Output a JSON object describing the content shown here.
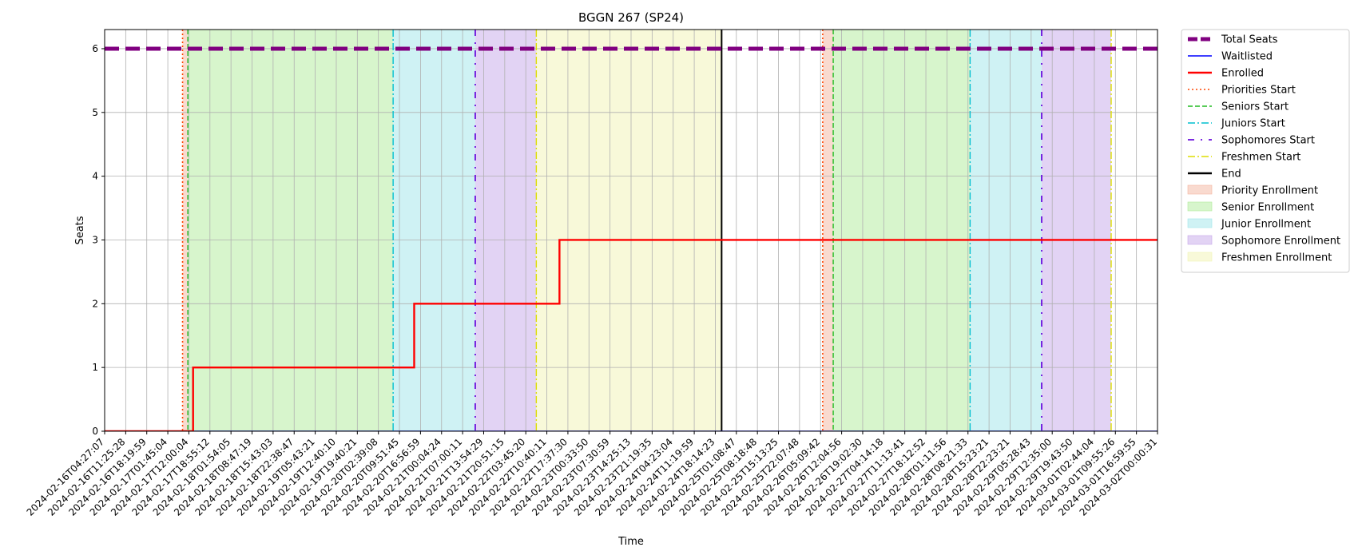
{
  "chart_data": {
    "type": "line",
    "title": "BGGN 267 (SP24)",
    "xlabel": "Time",
    "ylabel": "Seats",
    "ylim": [
      0,
      6.3
    ],
    "yticks": [
      0,
      1,
      2,
      3,
      4,
      5,
      6
    ],
    "grid": true,
    "legend_position": "outside-right-top",
    "x_ticks": [
      "2024-02-16T04:27:07",
      "2024-02-16T11:25:28",
      "2024-02-16T18:19:59",
      "2024-02-17T01:45:04",
      "2024-02-17T12:00:04",
      "2024-02-17T18:55:12",
      "2024-02-18T01:54:05",
      "2024-02-18T08:47:19",
      "2024-02-18T15:43:03",
      "2024-02-18T22:38:47",
      "2024-02-19T05:43:21",
      "2024-02-19T12:40:10",
      "2024-02-19T19:40:21",
      "2024-02-20T02:39:08",
      "2024-02-20T09:51:45",
      "2024-02-20T16:56:59",
      "2024-02-21T00:04:24",
      "2024-02-21T07:00:11",
      "2024-02-21T13:54:29",
      "2024-02-21T20:51:15",
      "2024-02-22T03:45:20",
      "2024-02-22T10:40:11",
      "2024-02-22T17:37:30",
      "2024-02-23T00:33:50",
      "2024-02-23T07:30:59",
      "2024-02-23T14:25:13",
      "2024-02-23T21:19:35",
      "2024-02-24T04:23:04",
      "2024-02-24T11:19:59",
      "2024-02-24T18:14:23",
      "2024-02-25T01:08:47",
      "2024-02-25T08:18:48",
      "2024-02-25T15:13:25",
      "2024-02-25T22:07:48",
      "2024-02-26T05:09:42",
      "2024-02-26T12:04:56",
      "2024-02-26T19:02:30",
      "2024-02-27T04:14:18",
      "2024-02-27T11:13:41",
      "2024-02-27T18:12:52",
      "2024-02-28T01:11:56",
      "2024-02-28T08:21:33",
      "2024-02-28T15:23:21",
      "2024-02-28T22:23:21",
      "2024-02-29T05:28:43",
      "2024-02-29T12:35:00",
      "2024-02-29T19:43:50",
      "2024-03-01T02:44:04",
      "2024-03-01T09:55:26",
      "2024-03-01T16:59:55",
      "2024-03-02T00:00:31"
    ],
    "x_range_index": [
      0,
      50
    ],
    "series": [
      {
        "name": "Total Seats",
        "color": "#800080",
        "style": "dashed-thick",
        "points": [
          [
            0,
            6
          ],
          [
            50,
            6
          ]
        ]
      },
      {
        "name": "Waitlisted",
        "color": "#0000ff",
        "style": "solid-thin",
        "points": [
          [
            0,
            0
          ],
          [
            50,
            0
          ]
        ]
      },
      {
        "name": "Enrolled",
        "color": "#ff0000",
        "style": "solid",
        "points": [
          [
            0,
            0
          ],
          [
            4.2,
            0
          ],
          [
            4.2,
            1
          ],
          [
            14.7,
            1
          ],
          [
            14.7,
            2
          ],
          [
            21.6,
            2
          ],
          [
            21.6,
            3
          ],
          [
            50,
            3
          ]
        ]
      }
    ],
    "vlines": [
      {
        "name": "Priorities Start",
        "color": "#ff4500",
        "style": "dotted",
        "at": [
          3.7,
          34.1
        ]
      },
      {
        "name": "Seniors Start",
        "color": "#22bb22",
        "style": "dashed",
        "at": [
          3.95,
          34.6
        ]
      },
      {
        "name": "Juniors Start",
        "color": "#00bfcf",
        "style": "dashdot",
        "at": [
          13.7,
          41.1
        ]
      },
      {
        "name": "Sophomores Start",
        "color": "#6a0ddd",
        "style": "loosedashdot",
        "at": [
          17.6,
          44.5
        ]
      },
      {
        "name": "Freshmen Start",
        "color": "#dddd00",
        "style": "dashdot",
        "at": [
          20.5,
          47.8
        ]
      },
      {
        "name": "End",
        "color": "#000000",
        "style": "solid",
        "at": [
          29.3
        ]
      }
    ],
    "spans": [
      {
        "name": "Priority Enrollment",
        "color": "#f4b6a0",
        "ranges": [
          [
            3.7,
            3.95
          ],
          [
            34.1,
            34.6
          ]
        ]
      },
      {
        "name": "Senior Enrollment",
        "color": "#b0eb9a",
        "ranges": [
          [
            3.95,
            13.7
          ],
          [
            34.6,
            41.1
          ]
        ]
      },
      {
        "name": "Junior Enrollment",
        "color": "#a0e6ea",
        "ranges": [
          [
            13.7,
            17.6
          ],
          [
            41.1,
            44.5
          ]
        ]
      },
      {
        "name": "Sophomore Enrollment",
        "color": "#c6a8ea",
        "ranges": [
          [
            17.6,
            20.5
          ],
          [
            44.5,
            47.8
          ]
        ]
      },
      {
        "name": "Freshmen Enrollment",
        "color": "#f1f3b4",
        "ranges": [
          [
            20.5,
            29.3
          ]
        ]
      }
    ],
    "legend": [
      {
        "label": "Total Seats",
        "kind": "line",
        "color": "#800080",
        "style": "dashed-thick"
      },
      {
        "label": "Waitlisted",
        "kind": "line",
        "color": "#0000ff",
        "style": "solid-thin"
      },
      {
        "label": "Enrolled",
        "kind": "line",
        "color": "#ff0000",
        "style": "solid"
      },
      {
        "label": "Priorities Start",
        "kind": "line",
        "color": "#ff4500",
        "style": "dotted"
      },
      {
        "label": "Seniors Start",
        "kind": "line",
        "color": "#22bb22",
        "style": "dashed"
      },
      {
        "label": "Juniors Start",
        "kind": "line",
        "color": "#00bfcf",
        "style": "dashdot"
      },
      {
        "label": "Sophomores Start",
        "kind": "line",
        "color": "#6a0ddd",
        "style": "loosedashdot"
      },
      {
        "label": "Freshmen Start",
        "kind": "line",
        "color": "#dddd00",
        "style": "dashdot"
      },
      {
        "label": "End",
        "kind": "line",
        "color": "#000000",
        "style": "solid"
      },
      {
        "label": "Priority Enrollment",
        "kind": "patch",
        "color": "#f4b6a0"
      },
      {
        "label": "Senior Enrollment",
        "kind": "patch",
        "color": "#b0eb9a"
      },
      {
        "label": "Junior Enrollment",
        "kind": "patch",
        "color": "#a0e6ea"
      },
      {
        "label": "Sophomore Enrollment",
        "kind": "patch",
        "color": "#c6a8ea"
      },
      {
        "label": "Freshmen Enrollment",
        "kind": "patch",
        "color": "#f1f3b4"
      }
    ]
  }
}
